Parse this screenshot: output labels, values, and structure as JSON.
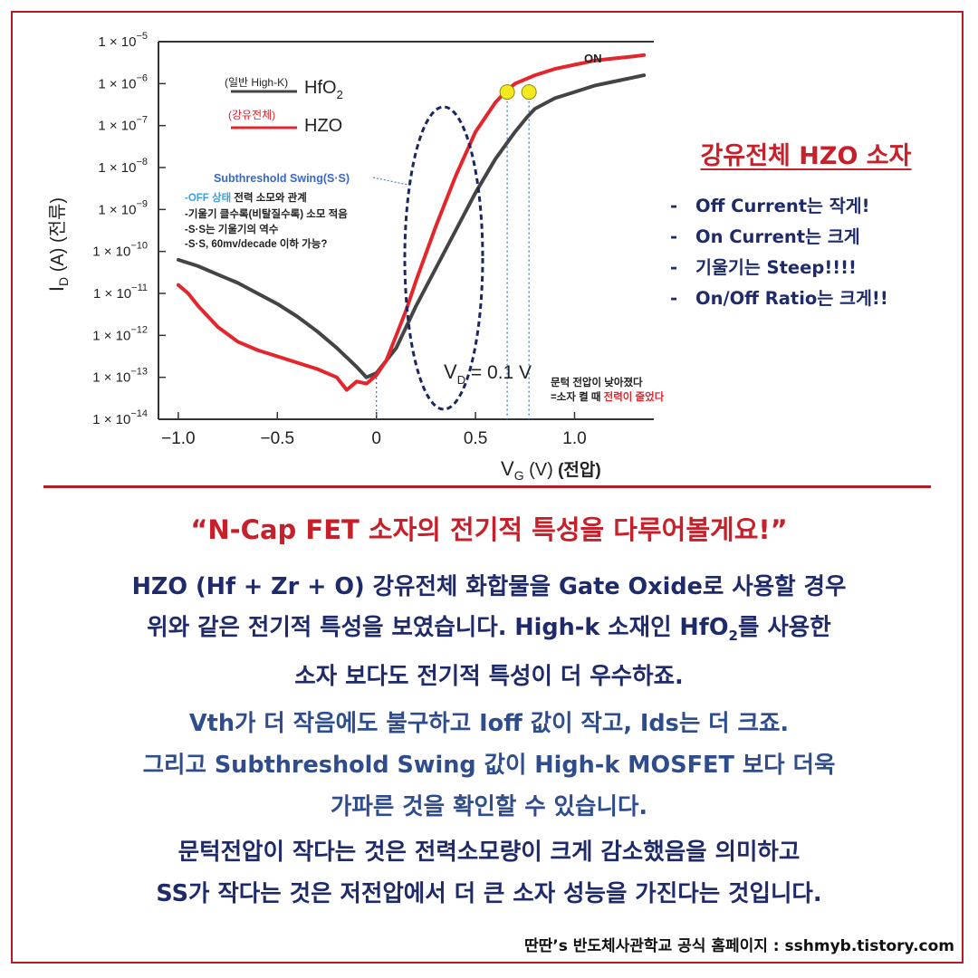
{
  "chart_data": {
    "type": "line",
    "xlabel": "V",
    "xlabel_sub": "G",
    "xlabel_unit": "(V)",
    "xlabel_kr": "(전압)",
    "ylabel": "I",
    "ylabel_sub": "D",
    "ylabel_unit": "(A) (전류)",
    "xlim": [
      -1.1,
      1.4
    ],
    "ylim_exp": [
      -14,
      -5
    ],
    "log_y": true,
    "x_ticks": [
      -1.0,
      -0.5,
      0,
      0.5,
      1.0
    ],
    "x_tick_labels": [
      "−1.0",
      "−0.5",
      "0",
      "0.5",
      "1.0"
    ],
    "y_ticks_exp": [
      -5,
      -6,
      -7,
      -8,
      -9,
      -10,
      -11,
      -12,
      -13,
      -14
    ],
    "y_tick_prefix": "1 × 10",
    "grid": false,
    "series": [
      {
        "name": "HfO",
        "name_sub": "2",
        "legend_note": "(일반 High-K)",
        "color": "#444444",
        "x": [
          -1.0,
          -0.9,
          -0.8,
          -0.7,
          -0.6,
          -0.5,
          -0.4,
          -0.3,
          -0.2,
          -0.1,
          -0.05,
          0.0,
          0.05,
          0.1,
          0.15,
          0.2,
          0.3,
          0.4,
          0.5,
          0.6,
          0.7,
          0.76,
          0.8,
          0.9,
          1.0,
          1.1,
          1.2,
          1.3,
          1.35
        ],
        "log_y": [
          -10.2,
          -10.35,
          -10.55,
          -10.75,
          -11.0,
          -11.25,
          -11.55,
          -11.9,
          -12.3,
          -12.75,
          -13.0,
          -12.9,
          -12.6,
          -12.3,
          -11.8,
          -11.3,
          -10.4,
          -9.5,
          -8.6,
          -7.8,
          -7.15,
          -6.8,
          -6.6,
          -6.35,
          -6.2,
          -6.05,
          -5.95,
          -5.85,
          -5.8
        ]
      },
      {
        "name": "HZO",
        "legend_note": "(강유전체)",
        "color": "#e4262c",
        "x": [
          -1.0,
          -0.95,
          -0.9,
          -0.8,
          -0.7,
          -0.6,
          -0.5,
          -0.4,
          -0.3,
          -0.2,
          -0.15,
          -0.1,
          -0.05,
          0.0,
          0.05,
          0.1,
          0.15,
          0.2,
          0.3,
          0.4,
          0.5,
          0.6,
          0.66,
          0.7,
          0.8,
          0.9,
          1.0,
          1.1,
          1.2,
          1.3,
          1.35
        ],
        "log_y": [
          -10.8,
          -11.0,
          -11.3,
          -11.8,
          -12.15,
          -12.35,
          -12.5,
          -12.65,
          -12.8,
          -13.0,
          -13.3,
          -13.1,
          -13.15,
          -12.95,
          -12.6,
          -12.0,
          -11.4,
          -10.7,
          -9.4,
          -8.2,
          -7.15,
          -6.45,
          -6.15,
          -6.0,
          -5.8,
          -5.65,
          -5.55,
          -5.45,
          -5.4,
          -5.35,
          -5.32
        ]
      }
    ],
    "markers": [
      {
        "x": 0.66,
        "log_y": -6.2,
        "color": "#f2ea1c"
      },
      {
        "x": 0.77,
        "log_y": -6.2,
        "color": "#f2ea1c"
      }
    ],
    "annotations": {
      "on_label": "ON",
      "vd_label": "V",
      "vd_sub": "D",
      "vd_value": "= 0.1 V",
      "ss_title": "Subthreshold Swing(S·S)",
      "ss_off_state": "-OFF 상태",
      "ss_off_rest": " 전력 소모와 관계",
      "ss_line2": "-기울기 클수록(비탈질수록) 소모 적음",
      "ss_line3": "-S·S는 기울기의 역수",
      "ss_line4": "-S·S, 60mv/decade 이하 가능?",
      "threshold_line1": "문턱 전압이 낮아졌다",
      "threshold_line2_a": "=소자 켤 때 ",
      "threshold_line2_b": "전력이 줄었다",
      "colors": {
        "accent_red": "#e4262c",
        "ss_blue": "#3a67c8",
        "off_blue": "#3aa0e0"
      }
    }
  },
  "side_panel": {
    "title": "강유전체 HZO 소자",
    "items": [
      "Off Current는 작게!",
      "On Current는 크게",
      "기울기는 Steep!!!!",
      "On/Off Ratio는 크게!!"
    ],
    "bullet": "-"
  },
  "headline": "“N-Cap FET 소자의 전기적 특성을 다루어볼게요!”",
  "paragraph1": {
    "line1": "HZO (Hf + Zr + O) 강유전체 화합물을 Gate Oxide로 사용할 경우",
    "line2_a": "위와 같은 전기적 특성을 보였습니다. High-k 소재인 HfO",
    "line2_sub": "2",
    "line2_b": "를 사용한",
    "line3": "소자 보다도 전기적 특성이 더 우수하죠."
  },
  "paragraph2": {
    "line1": "Vth가 더 작음에도 불구하고 Ioff 값이 작고, Ids는 더 크죠.",
    "line2": "그리고 Subthreshold Swing 값이 High-k MOSFET 보다 더욱",
    "line3": "가파른 것을 확인할 수 있습니다."
  },
  "paragraph3": {
    "line1": "문턱전압이 작다는 것은 전력소모량이 크게 감소했음을 의미하고",
    "line2": "SS가 작다는 것은 저전압에서 더 큰 소자 성능을 가진다는 것입니다."
  },
  "footer": "딴딴’s 반도체사관학교 공식 홈페이지 : sshmyb.tistory.com",
  "colors": {
    "frame": "#b21e24",
    "title_red": "#c8202a",
    "navy": "#1f2a6b",
    "blue": "#2f4d8c"
  }
}
